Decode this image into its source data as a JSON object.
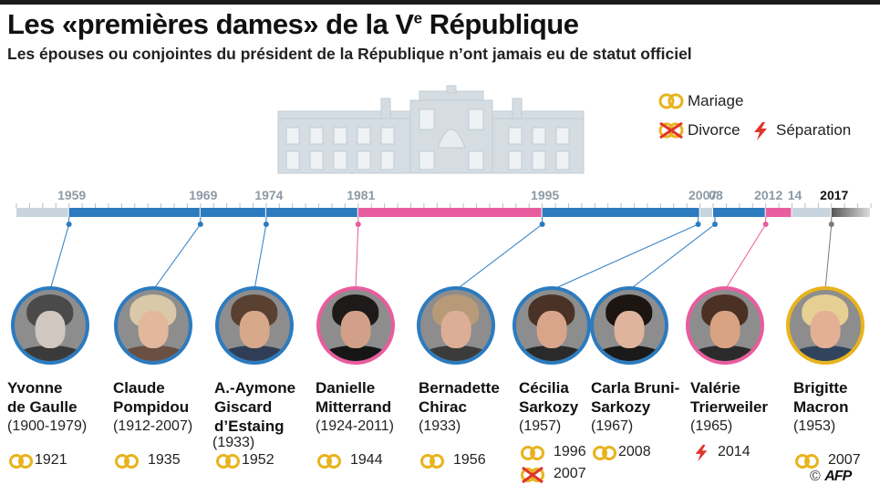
{
  "header": {
    "title_main": "Les «premières dames» de la V",
    "title_sup": "e",
    "title_end": " République",
    "subtitle": "Les épouses ou conjointes du président de la République n’ont jamais eu de statut officiel"
  },
  "legend": {
    "mariage": "Mariage",
    "divorce": "Divorce",
    "separation": "Séparation"
  },
  "colors": {
    "blue": "#2c7bbf",
    "pink": "#e85d9e",
    "gray": "#c8d5de",
    "gold": "#e8b31d",
    "red": "#e0352b",
    "dark_gray": "#7a7a7a",
    "photo_border_default": "#2c7bbf",
    "photo_border_pink": "#e85d9e",
    "photo_border_gold": "#e8b31d"
  },
  "chart_data": {
    "type": "timeline",
    "axis_range": [
      1955,
      2020
    ],
    "tick_labels": [
      {
        "label": "1959",
        "year": 1959,
        "bold": false
      },
      {
        "label": "1969",
        "year": 1969,
        "bold": false
      },
      {
        "label": "1974",
        "year": 1974,
        "bold": false
      },
      {
        "label": "1981",
        "year": 1981,
        "bold": false
      },
      {
        "label": "1995",
        "year": 1995,
        "bold": false
      },
      {
        "label": "2007",
        "year": 2007,
        "bold": false
      },
      {
        "label": "08",
        "year": 2008,
        "bold": false
      },
      {
        "label": "2012",
        "year": 2012,
        "bold": false
      },
      {
        "label": "14",
        "year": 2014,
        "bold": false
      },
      {
        "label": "2017",
        "year": 2017,
        "bold": true
      }
    ],
    "segments": [
      {
        "start": 1955,
        "end": 1959,
        "color": "gray"
      },
      {
        "start": 1959,
        "end": 1969,
        "color": "blue"
      },
      {
        "start": 1969,
        "end": 1974,
        "color": "blue"
      },
      {
        "start": 1974,
        "end": 1981,
        "color": "blue"
      },
      {
        "start": 1981,
        "end": 1995,
        "color": "pink"
      },
      {
        "start": 1995,
        "end": 2007,
        "color": "blue"
      },
      {
        "start": 2007,
        "end": 2008,
        "color": "gray"
      },
      {
        "start": 2008,
        "end": 2012,
        "color": "blue"
      },
      {
        "start": 2012,
        "end": 2014,
        "color": "pink"
      },
      {
        "start": 2014,
        "end": 2017,
        "color": "gray"
      },
      {
        "start": 2017,
        "end": 2020,
        "color": "fade"
      }
    ],
    "first_ladies": [
      {
        "name_line1": "Yvonne",
        "name_line2": "de Gaulle",
        "name_line3": "",
        "years": "(1900-1979)",
        "mandate_start": 1959,
        "border": "photo_border_default",
        "hair": "#4a4a4a",
        "skin": "#cfc7c0",
        "clothes": "#3a3a3a",
        "events": [
          {
            "type": "mariage",
            "year": "1921"
          }
        ]
      },
      {
        "name_line1": "Claude",
        "name_line2": "Pompidou",
        "name_line3": "",
        "years": "(1912-2007)",
        "mandate_start": 1969,
        "border": "photo_border_default",
        "hair": "#d9c9a8",
        "skin": "#e3b79c",
        "clothes": "#6a4f43",
        "events": [
          {
            "type": "mariage",
            "year": "1935"
          }
        ]
      },
      {
        "name_line1": "A.-Aymone",
        "name_line2": "Giscard",
        "name_line3": "d’Estaing",
        "years": "(1933)",
        "mandate_start": 1974,
        "border": "photo_border_default",
        "hair": "#5a4030",
        "skin": "#d8a88a",
        "clothes": "#2f3e56",
        "events": [
          {
            "type": "mariage",
            "year": "1952"
          }
        ]
      },
      {
        "name_line1": "Danielle",
        "name_line2": "Mitterrand",
        "name_line3": "",
        "years": "(1924-2011)",
        "mandate_start": 1981,
        "border": "photo_border_pink",
        "hair": "#1f1a1a",
        "skin": "#d2a089",
        "clothes": "#161616",
        "events": [
          {
            "type": "mariage",
            "year": "1944"
          }
        ]
      },
      {
        "name_line1": "Bernadette",
        "name_line2": "Chirac",
        "name_line3": "",
        "years": "(1933)",
        "mandate_start": 1995,
        "border": "photo_border_default",
        "hair": "#b99a78",
        "skin": "#dcae95",
        "clothes": "#3b3b3b",
        "events": [
          {
            "type": "mariage",
            "year": "1956"
          }
        ]
      },
      {
        "name_line1": "Cécilia",
        "name_line2": "Sarkozy",
        "name_line3": "",
        "years": "(1957)",
        "mandate_start": 2007,
        "border": "photo_border_default",
        "hair": "#4a3326",
        "skin": "#d9a58a",
        "clothes": "#2a2a2a",
        "events": [
          {
            "type": "mariage",
            "year": "1996"
          },
          {
            "type": "divorce",
            "year": "2007"
          }
        ]
      },
      {
        "name_line1": "Carla Bruni-",
        "name_line2": "Sarkozy",
        "name_line3": "",
        "years": "(1967)",
        "mandate_start": 2008,
        "border": "photo_border_default",
        "hair": "#1c1512",
        "skin": "#dfb49c",
        "clothes": "#1a1a1a",
        "events": [
          {
            "type": "mariage",
            "year": "2008"
          }
        ]
      },
      {
        "name_line1": "Valérie",
        "name_line2": "Trierweiler",
        "name_line3": "",
        "years": "(1965)",
        "mandate_start": 2012,
        "border": "photo_border_pink",
        "hair": "#4b3123",
        "skin": "#d9a383",
        "clothes": "#2b2b2b",
        "events": [
          {
            "type": "separation",
            "year": "2014"
          }
        ]
      },
      {
        "name_line1": "Brigitte",
        "name_line2": "Macron",
        "name_line3": "",
        "years": "(1953)",
        "mandate_start": 2017,
        "border": "photo_border_gold",
        "hair": "#e6cf92",
        "skin": "#e3b095",
        "clothes": "#31445e",
        "events": [
          {
            "type": "mariage",
            "year": "2007"
          }
        ]
      }
    ]
  },
  "credit": {
    "copyright": "©",
    "agency": "AFP"
  }
}
